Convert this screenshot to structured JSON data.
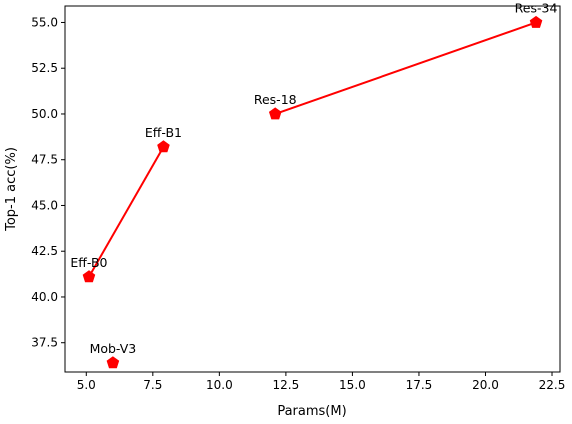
{
  "chart_data": {
    "type": "scatter",
    "xlabel": "Params(M)",
    "ylabel": "Top-1 acc(%)",
    "xlim": [
      4.2,
      22.8
    ],
    "ylim": [
      35.9,
      55.9
    ],
    "x_ticks": [
      "5.0",
      "7.5",
      "10.0",
      "12.5",
      "15.0",
      "17.5",
      "20.0",
      "22.5"
    ],
    "x_tick_values": [
      5.0,
      7.5,
      10.0,
      12.5,
      15.0,
      17.5,
      20.0,
      22.5
    ],
    "y_ticks": [
      "37.5",
      "40.0",
      "42.5",
      "45.0",
      "47.5",
      "50.0",
      "52.5",
      "55.0"
    ],
    "y_tick_values": [
      37.5,
      40.0,
      42.5,
      45.0,
      47.5,
      50.0,
      52.5,
      55.0
    ],
    "points": [
      {
        "label": "Mob-V3",
        "x": 6.0,
        "y": 36.4
      },
      {
        "label": "Eff-B0",
        "x": 5.1,
        "y": 41.1
      },
      {
        "label": "Eff-B1",
        "x": 7.9,
        "y": 48.2
      },
      {
        "label": "Res-18",
        "x": 12.1,
        "y": 50.0
      },
      {
        "label": "Res-34",
        "x": 21.9,
        "y": 55.0
      }
    ],
    "lines": [
      {
        "from": "Eff-B0",
        "to": "Eff-B1"
      },
      {
        "from": "Res-18",
        "to": "Res-34"
      }
    ],
    "color": "#ff0000",
    "marker": "pentagon",
    "grid": false
  }
}
